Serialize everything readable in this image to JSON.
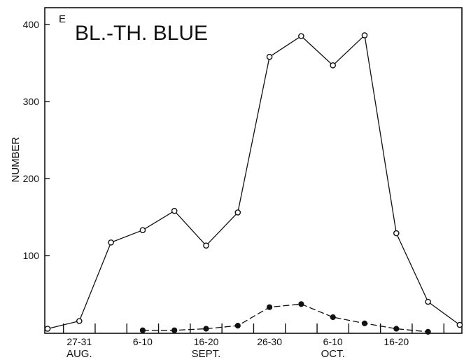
{
  "chart_data": {
    "type": "line",
    "panel_letter": "E",
    "title": "BL.-TH. BLUE",
    "ylabel": "NUMBER",
    "ylim": [
      0,
      400
    ],
    "yticks": [
      "100",
      "200",
      "300",
      "400"
    ],
    "x_period_labels": [
      {
        "label": "27-31",
        "index": 1
      },
      {
        "label": "6-10",
        "index": 3
      },
      {
        "label": "16-20",
        "index": 5
      },
      {
        "label": "26-30",
        "index": 7
      },
      {
        "label": "6-10",
        "index": 9
      },
      {
        "label": "16-20",
        "index": 11
      }
    ],
    "x_month_labels": [
      {
        "label": "AUG.",
        "index": 1
      },
      {
        "label": "SEPT.",
        "index": 5
      },
      {
        "label": "OCT.",
        "index": 9
      }
    ],
    "num_periods": 14,
    "series": [
      {
        "marker": "open-circle",
        "line": "solid",
        "values": [
          5,
          15,
          117,
          133,
          158,
          113,
          156,
          358,
          385,
          347,
          386,
          129,
          40,
          10
        ]
      },
      {
        "marker": "filled-circle",
        "line": "dashed",
        "values": [
          null,
          null,
          null,
          3,
          3,
          5,
          9,
          33,
          37,
          20,
          12,
          5,
          1,
          null
        ]
      }
    ],
    "grid": false,
    "colors": {
      "ink": "#111111",
      "background": "#ffffff"
    }
  }
}
